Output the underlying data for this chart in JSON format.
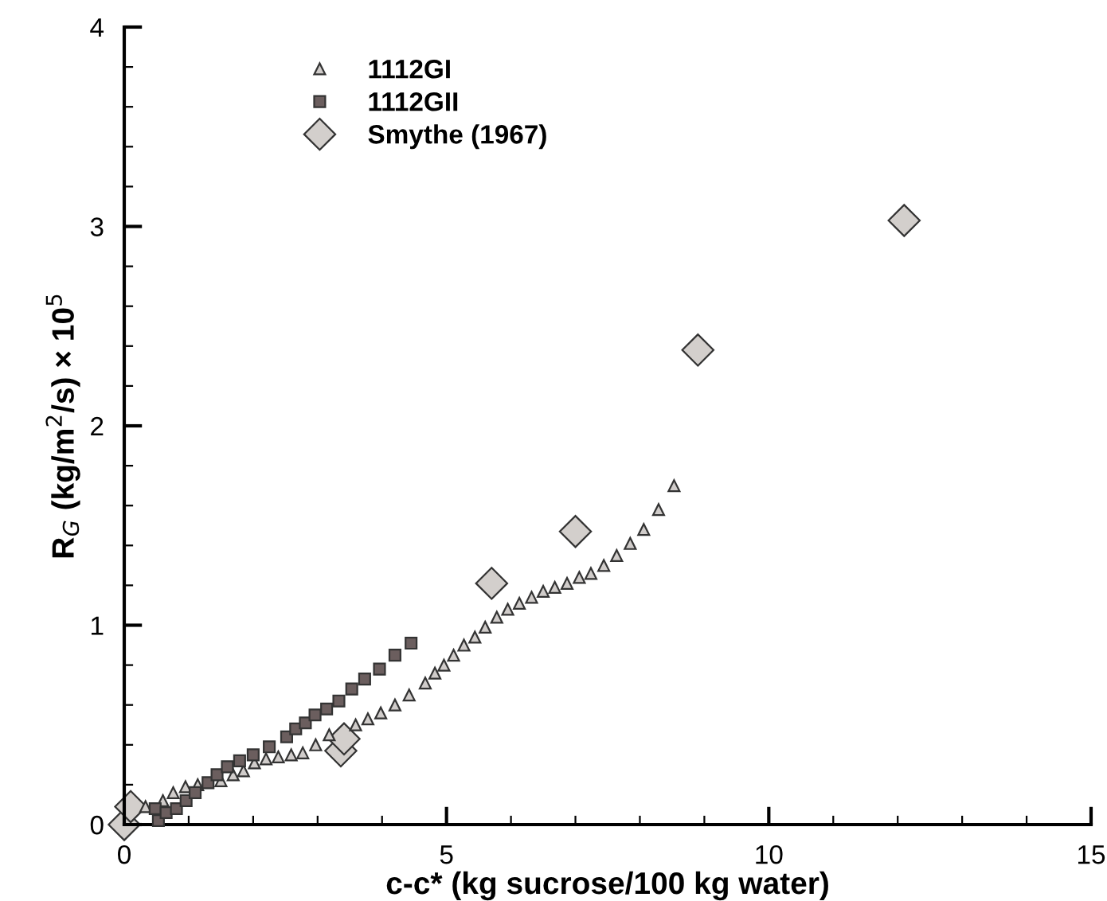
{
  "chart_data": {
    "type": "scatter",
    "xlabel": "c-c* (kg sucrose/100 kg water)",
    "ylabel": "R$_{G}$ (kg/m$^{2}$/s) × 10$^{5}$",
    "xlim": [
      0,
      15
    ],
    "ylim": [
      0,
      4
    ],
    "xticks": [
      0,
      5,
      10,
      15
    ],
    "yticks": [
      0,
      1,
      2,
      3,
      4
    ],
    "grid": false,
    "legend": "top left",
    "series": [
      {
        "name": "1112GI",
        "color": "#d0ccca",
        "marker": "triangle",
        "x": [
          0.33,
          0.6,
          0.76,
          0.95,
          1.14,
          1.5,
          1.69,
          1.85,
          2.02,
          2.2,
          2.39,
          2.59,
          2.77,
          2.97,
          3.18,
          3.59,
          3.78,
          3.98,
          4.2,
          4.42,
          4.67,
          4.82,
          4.96,
          5.11,
          5.27,
          5.44,
          5.6,
          5.78,
          5.95,
          6.13,
          6.32,
          6.5,
          6.68,
          6.87,
          7.06,
          7.24,
          7.44,
          7.64,
          7.85,
          8.06,
          8.29,
          8.53
        ],
        "values": [
          0.09,
          0.12,
          0.16,
          0.19,
          0.2,
          0.22,
          0.25,
          0.27,
          0.31,
          0.33,
          0.34,
          0.35,
          0.36,
          0.4,
          0.45,
          0.5,
          0.53,
          0.56,
          0.6,
          0.65,
          0.71,
          0.76,
          0.8,
          0.85,
          0.9,
          0.94,
          0.99,
          1.04,
          1.08,
          1.11,
          1.14,
          1.17,
          1.19,
          1.21,
          1.24,
          1.26,
          1.3,
          1.35,
          1.41,
          1.48,
          1.58,
          1.7
        ]
      },
      {
        "name": "1112GII",
        "color": "#6b5e5e",
        "marker": "square",
        "x": [
          0.48,
          0.53,
          0.65,
          0.81,
          0.96,
          1.1,
          1.3,
          1.44,
          1.6,
          1.79,
          2.0,
          2.25,
          2.52,
          2.66,
          2.81,
          2.96,
          3.14,
          3.33,
          3.53,
          3.73,
          3.96,
          4.2,
          4.45
        ],
        "values": [
          0.08,
          0.02,
          0.06,
          0.08,
          0.12,
          0.16,
          0.21,
          0.25,
          0.29,
          0.32,
          0.35,
          0.39,
          0.44,
          0.48,
          0.51,
          0.55,
          0.58,
          0.62,
          0.68,
          0.73,
          0.78,
          0.85,
          0.91
        ]
      },
      {
        "name": "Smythe (1967)",
        "color": "#d3cfcc",
        "marker": "diamond",
        "x": [
          0,
          0.1,
          3.36,
          3.41,
          5.7,
          7.0,
          8.9,
          12.1
        ],
        "values": [
          0,
          0.09,
          0.37,
          0.43,
          1.21,
          1.47,
          2.38,
          3.03
        ]
      }
    ]
  }
}
